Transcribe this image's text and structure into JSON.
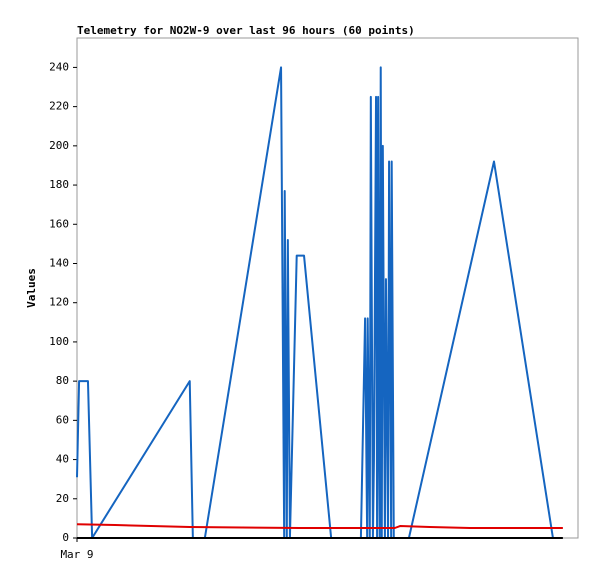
{
  "chart_data": {
    "type": "line",
    "title": "Telemetry for NO2W-9 over last 96 hours (60 points)",
    "y_label": "Values",
    "xlim": [
      0,
      96
    ],
    "xticks": [
      {
        "value": 0,
        "label": "Mar 9"
      }
    ],
    "ylim": [
      0,
      255
    ],
    "yticks": [
      0,
      20,
      40,
      60,
      80,
      100,
      120,
      140,
      160,
      180,
      200,
      220,
      240
    ],
    "series": [
      {
        "color": "#1565c0",
        "x": [
          0,
          0.4,
          2.1,
          2.9,
          21.6,
          22.2,
          24.5,
          39.1,
          39.7,
          39.8,
          40.2,
          40.4,
          40.8,
          42.1,
          43.5,
          48.7,
          54.4,
          55.2,
          55.6,
          55.7,
          56.1,
          56.3,
          56.7,
          56.9,
          57.3,
          57.5,
          57.7,
          57.9,
          58.0,
          58.2,
          58.4,
          58.6,
          59.0,
          59.2,
          59.6,
          59.8,
          60.2,
          60.3,
          60.7,
          63.6,
          79.9,
          91.2
        ],
        "values": [
          31,
          80,
          80,
          0,
          80,
          0,
          0,
          240,
          0,
          177,
          0,
          152,
          0,
          144,
          144,
          0,
          0,
          112,
          0,
          112,
          0,
          225,
          0,
          40,
          225,
          0,
          225,
          40,
          0,
          240,
          0,
          200,
          0,
          132,
          0,
          192,
          0,
          192,
          0,
          0,
          192,
          0
        ]
      },
      {
        "color": "#e00000",
        "x": [
          0,
          7.3,
          21.6,
          42.7,
          60.9,
          61.9,
          67.6,
          75.3,
          93.1
        ],
        "values": [
          7,
          6.6,
          5.6,
          5.1,
          5.1,
          6.1,
          5.6,
          5.1,
          5.1
        ]
      },
      {
        "color": "#000000",
        "x": [
          0,
          93.1
        ],
        "values": [
          0,
          0
        ]
      }
    ]
  }
}
